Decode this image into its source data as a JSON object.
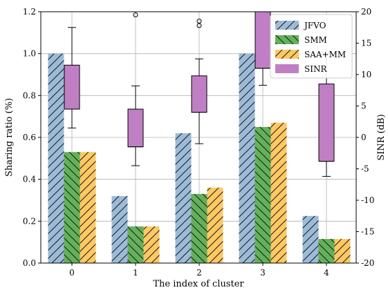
{
  "chart_data": {
    "type": "bar",
    "xlabel": "The index of cluster",
    "ylabel_left": "Sharing ratio (%)",
    "ylabel_right": "SINR (dB)",
    "categories": [
      "0",
      "1",
      "2",
      "3",
      "4"
    ],
    "ylim_left": [
      0.0,
      1.2
    ],
    "ylim_right": [
      -20,
      20
    ],
    "yticks_left": [
      "0.0",
      "0.2",
      "0.4",
      "0.6",
      "0.8",
      "1.0",
      "1.2"
    ],
    "yticks_right": [
      "-20",
      "-15",
      "-10",
      "-5",
      "0",
      "5",
      "10",
      "15",
      "20"
    ],
    "grid": true,
    "legend_position": "top-right",
    "series": [
      {
        "name": "JFVO",
        "values": [
          1.0,
          0.32,
          0.62,
          1.0,
          0.225
        ],
        "color": "#9bbbd8",
        "hatch": "//"
      },
      {
        "name": "SMM",
        "values": [
          0.53,
          0.175,
          0.33,
          0.65,
          0.115
        ],
        "color": "#63b15a",
        "hatch": "\\\\"
      },
      {
        "name": "SAA+MM",
        "values": [
          0.53,
          0.175,
          0.36,
          0.67,
          0.115
        ],
        "color": "#fec863",
        "hatch": "//"
      }
    ],
    "boxplot": {
      "name": "SINR",
      "color": "#c07fc4",
      "axis": "right",
      "boxes": [
        {
          "whisker_low": 1.5,
          "q1": 4.5,
          "median": 4.5,
          "q3": 11.5,
          "whisker_high": 17.5,
          "outliers": []
        },
        {
          "whisker_low": -4.5,
          "q1": -1.5,
          "median": -1.5,
          "q3": 4.5,
          "whisker_high": 8.2,
          "outliers": [
            19.5
          ]
        },
        {
          "whisker_low": -1.0,
          "q1": 4.0,
          "median": 4.0,
          "q3": 9.8,
          "whisker_high": 12.5,
          "outliers": [
            18.5,
            17.8
          ]
        },
        {
          "whisker_low": 8.3,
          "q1": 11.0,
          "median": 11.0,
          "q3": 20.0,
          "whisker_high": 20.0,
          "outliers": []
        },
        {
          "whisker_low": -6.2,
          "q1": -3.8,
          "median": -3.8,
          "q3": 8.5,
          "whisker_high": 13.5,
          "outliers": []
        }
      ]
    }
  }
}
